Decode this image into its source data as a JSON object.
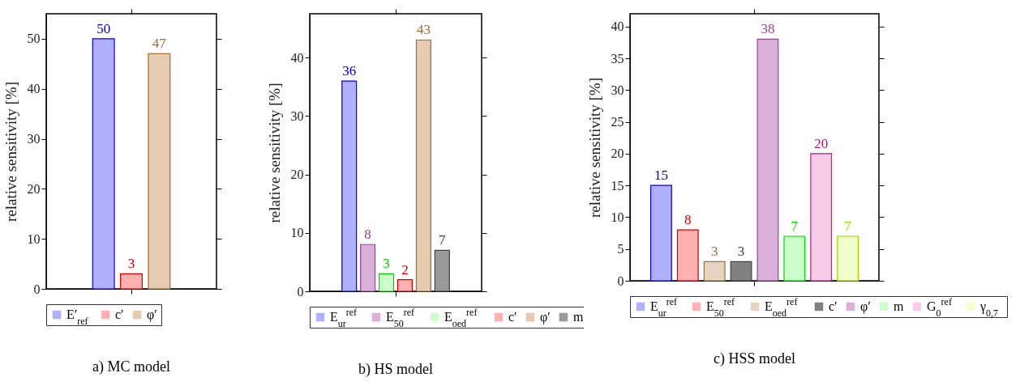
{
  "chart_data": [
    {
      "type": "bar",
      "title": "a) MC model",
      "ylabel": "relative sensitivity [%]",
      "categories": [
        null
      ],
      "series": [
        {
          "name": "E′$_{ref}$",
          "color": "#b0b0ff",
          "values": [
            50
          ]
        },
        {
          "name": "c′",
          "color": "#ffb0b0",
          "values": [
            3
          ]
        },
        {
          "name": "φ′",
          "color": "#e5cbb0",
          "values": [
            47
          ]
        }
      ],
      "ylim": [
        0,
        55
      ],
      "yticks": [
        0,
        10,
        20,
        30,
        40,
        50
      ],
      "data_labels": true,
      "legend": "bottom",
      "tick_labels": "y"
    },
    {
      "type": "bar",
      "title": "b) HS model",
      "ylabel": "relative sensitivity [%]",
      "categories": [
        null
      ],
      "series": [
        {
          "name": "E$_{ur}$$^{ref}$",
          "color": "#b0b0ff",
          "values": [
            36
          ]
        },
        {
          "name": "E$_{50}$$^{ref}$",
          "color": "#d8b0d8",
          "values": [
            8
          ]
        },
        {
          "name": "E$_{oed}$$^{ref}$",
          "color": "#ccffcc",
          "values": [
            3
          ]
        },
        {
          "name": "c′",
          "color": "#ffb0b0",
          "values": [
            2
          ]
        },
        {
          "name": "φ′",
          "color": "#e5cbb0",
          "values": [
            43
          ]
        },
        {
          "name": "m",
          "color": "#999999",
          "values": [
            7
          ]
        }
      ],
      "ylim": [
        0,
        47.5
      ],
      "yticks": [
        0,
        10,
        20,
        30,
        40
      ],
      "data_labels": true,
      "legend": "bottom",
      "tick_labels": "y"
    },
    {
      "type": "bar",
      "title": "c) HSS model",
      "ylabel": "relative sensitivity [%]",
      "categories": [
        null
      ],
      "series": [
        {
          "name": "E$_{ur}$$^{ref}$",
          "color": "#b0b0ff",
          "values": [
            15
          ]
        },
        {
          "name": "E$_{50}$$^{ref}$",
          "color": "#ffb0b0",
          "values": [
            8
          ]
        },
        {
          "name": "E$_{oed}$$^{ref}$",
          "color": "#e5d5c0",
          "values": [
            3
          ]
        },
        {
          "name": "c′",
          "color": "#808080",
          "values": [
            3
          ]
        },
        {
          "name": "φ′",
          "color": "#d8b0d8",
          "values": [
            38
          ]
        },
        {
          "name": "m",
          "color": "#ccffcc",
          "values": [
            7
          ]
        },
        {
          "name": "G$_{0}$$^{ref}$",
          "color": "#f8cce8",
          "values": [
            20
          ]
        },
        {
          "name": "γ$_{0,7}$",
          "color": "#f0ffcc",
          "values": [
            7
          ]
        }
      ],
      "ylim": [
        0,
        42
      ],
      "yticks": [
        0,
        5,
        10,
        15,
        20,
        25,
        30,
        35,
        40
      ],
      "data_labels": true,
      "legend": "bottom",
      "tick_labels": "y"
    }
  ]
}
